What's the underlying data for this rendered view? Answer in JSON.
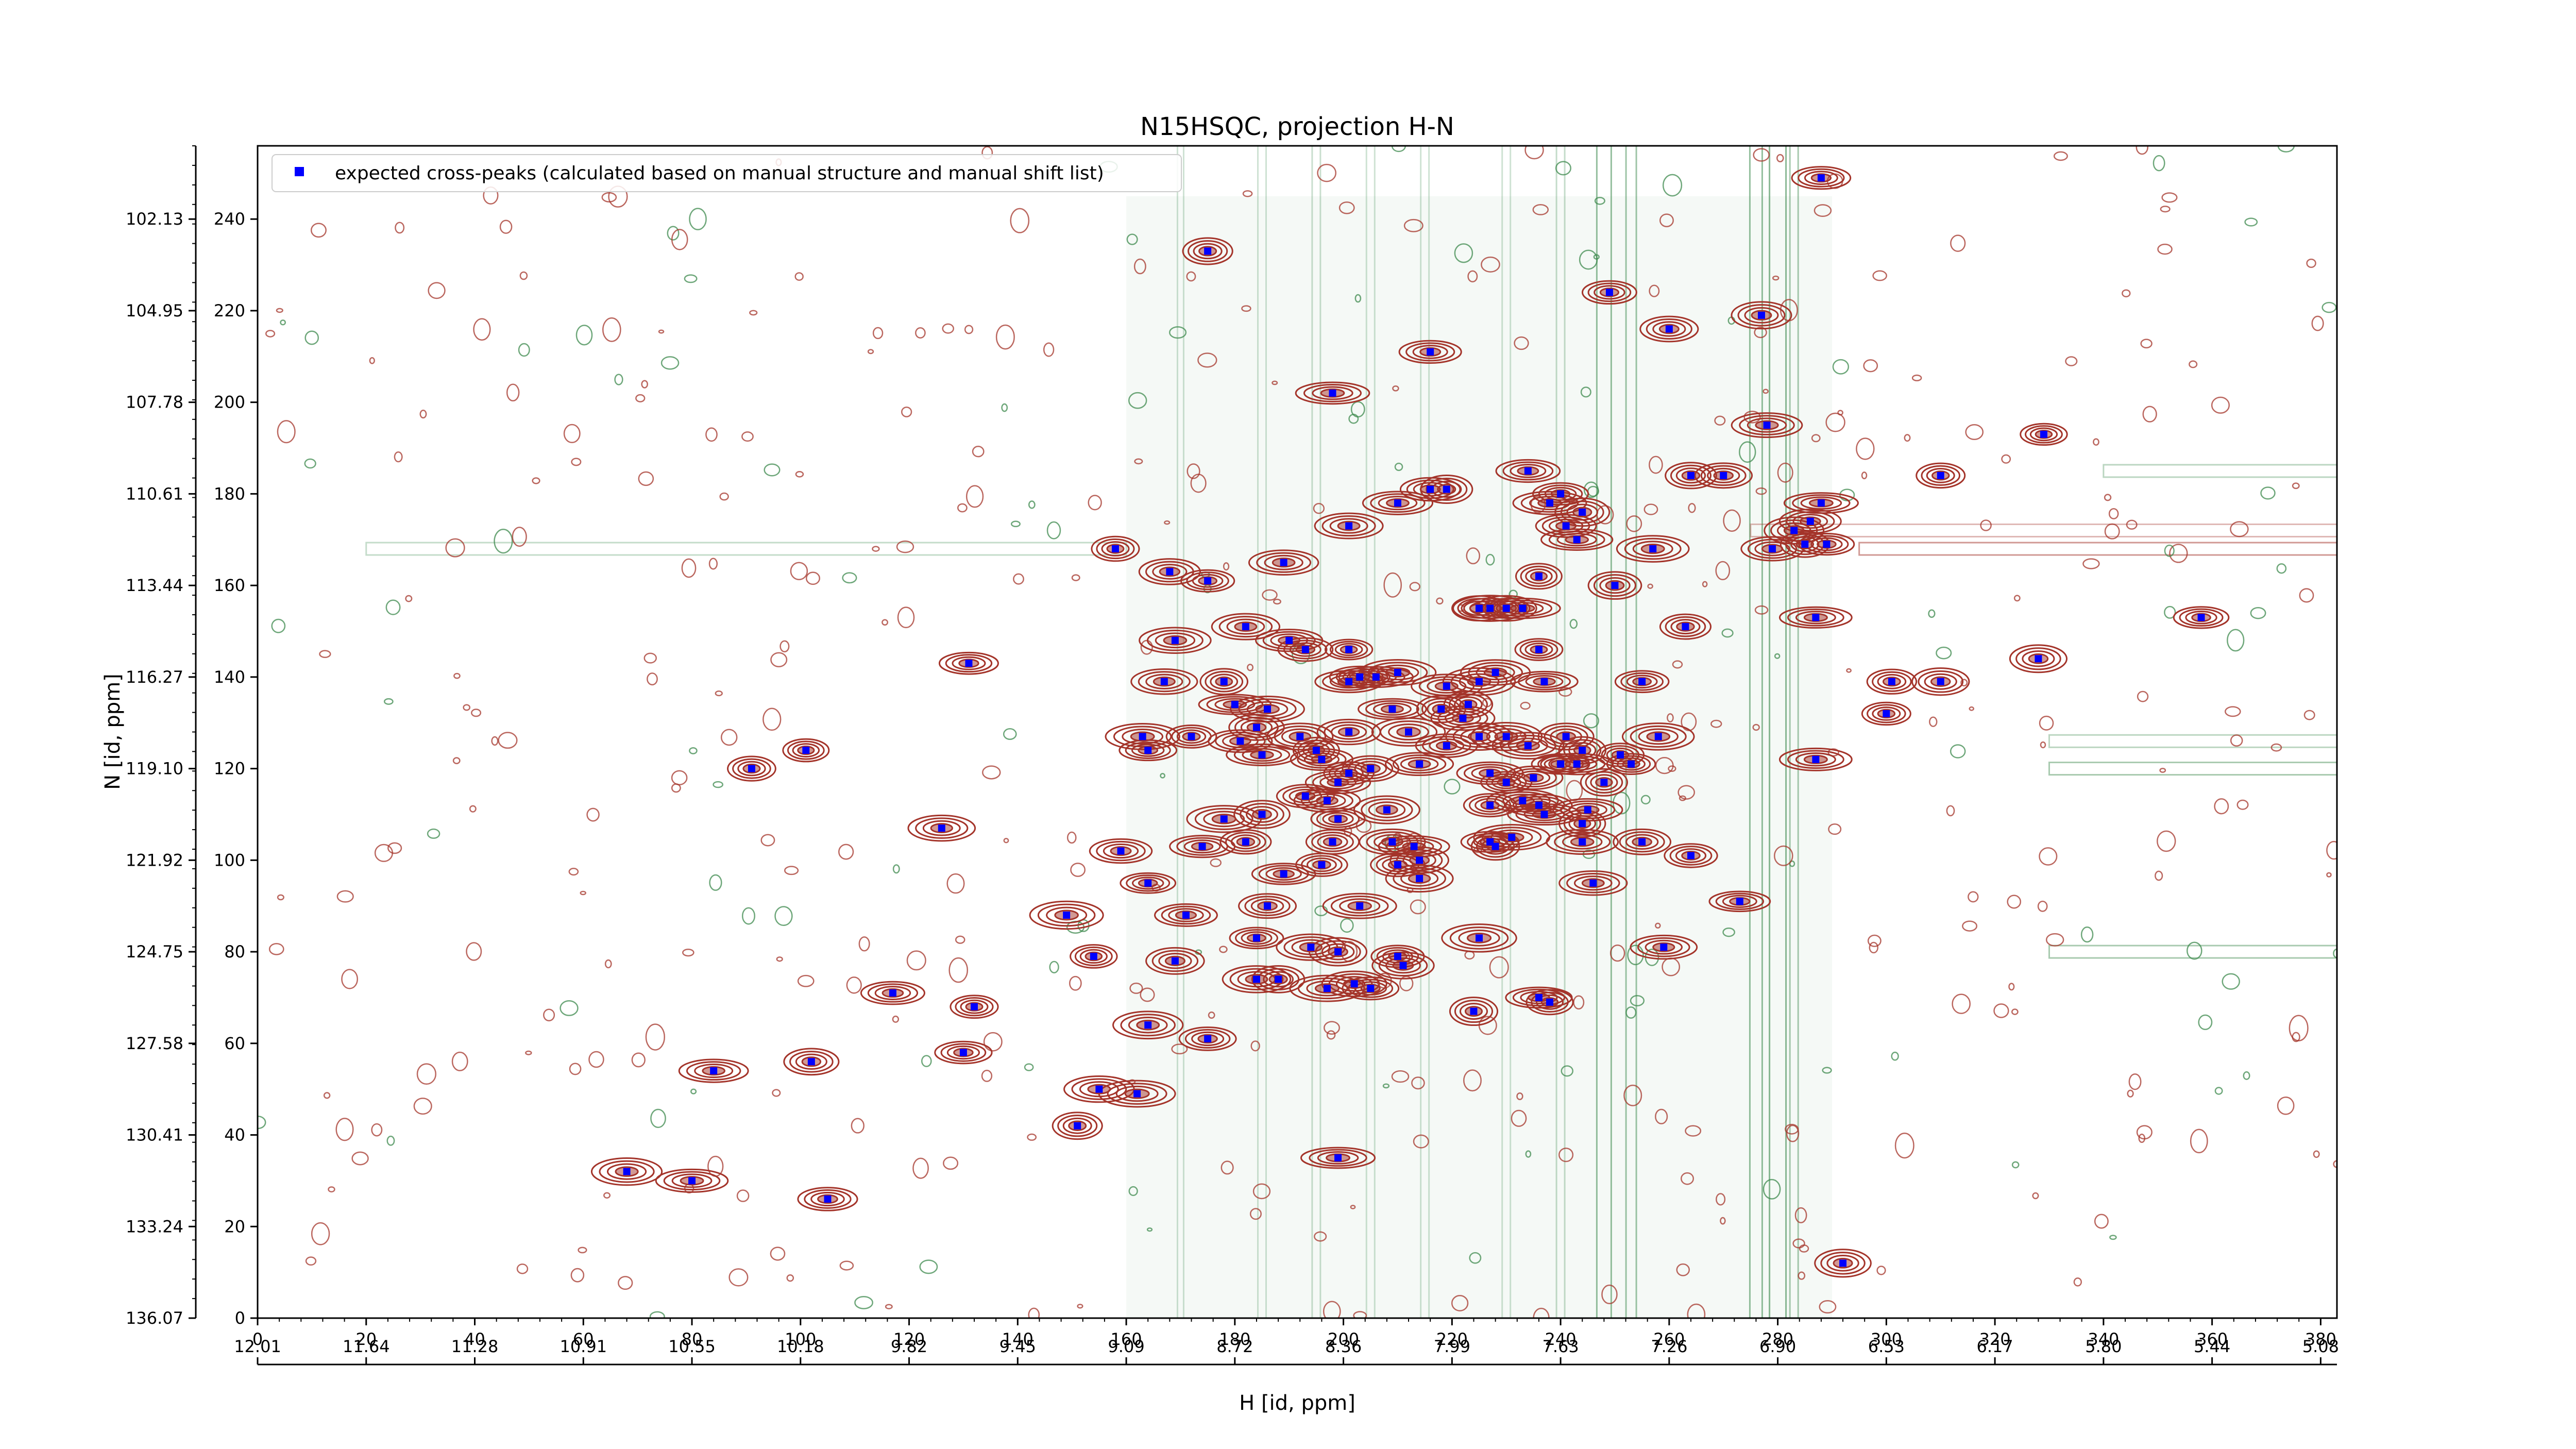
{
  "chart_data": {
    "type": "scatter",
    "title": "N15HSQC, projection H-N",
    "xlabel": "H [id, ppm]",
    "ylabel": "N [id, ppm]",
    "xlim": [
      0,
      383
    ],
    "ylim": [
      0,
      256
    ],
    "x_point_ticks": [
      0,
      20,
      40,
      60,
      80,
      100,
      120,
      140,
      160,
      180,
      200,
      220,
      240,
      260,
      280,
      300,
      320,
      340,
      360,
      380
    ],
    "y_point_ticks": [
      0,
      20,
      40,
      60,
      80,
      100,
      120,
      140,
      160,
      180,
      200,
      220,
      240
    ],
    "x_ppm_tick_labels": [
      "12.01",
      "11.64",
      "11.28",
      "10.91",
      "10.55",
      "10.18",
      "9.82",
      "9.45",
      "9.09",
      "8.72",
      "8.36",
      "7.99",
      "7.63",
      "7.26",
      "6.90",
      "6.53",
      "6.17",
      "5.80",
      "5.44",
      "5.08"
    ],
    "y_ppm_tick_labels": [
      "136.07",
      "133.24",
      "130.41",
      "127.58",
      "124.75",
      "121.92",
      "119.10",
      "116.27",
      "113.44",
      "110.61",
      "107.78",
      "104.95",
      "102.13"
    ],
    "legend": {
      "position": "top-left",
      "entries": [
        {
          "label": "expected cross-peaks (calculated based on manual structure and manual shift list)",
          "color": "#0000ff",
          "marker": "square"
        }
      ]
    },
    "series": [
      {
        "name": "expected cross-peaks (calculated based on manual structure and manual shift list)",
        "color": "#0000ff",
        "points": [
          [
            175,
            233
          ],
          [
            249,
            224
          ],
          [
            260,
            216
          ],
          [
            277,
            219
          ],
          [
            216,
            211
          ],
          [
            288,
            249
          ],
          [
            198,
            202
          ],
          [
            329,
            193
          ],
          [
            278,
            195
          ],
          [
            264,
            184
          ],
          [
            270,
            184
          ],
          [
            310,
            184
          ],
          [
            216,
            181
          ],
          [
            219,
            181
          ],
          [
            234,
            185
          ],
          [
            210,
            178
          ],
          [
            238,
            178
          ],
          [
            240,
            180
          ],
          [
            244,
            176
          ],
          [
            241,
            173
          ],
          [
            201,
            173
          ],
          [
            243,
            170
          ],
          [
            286,
            174
          ],
          [
            288,
            178
          ],
          [
            283,
            172
          ],
          [
            285,
            169
          ],
          [
            279,
            168
          ],
          [
            289,
            169
          ],
          [
            158,
            168
          ],
          [
            257,
            168
          ],
          [
            168,
            163
          ],
          [
            175,
            161
          ],
          [
            189,
            165
          ],
          [
            236,
            162
          ],
          [
            250,
            160
          ],
          [
            225,
            155
          ],
          [
            227,
            155
          ],
          [
            230,
            155
          ],
          [
            233,
            155
          ],
          [
            287,
            153
          ],
          [
            358,
            153
          ],
          [
            182,
            151
          ],
          [
            169,
            148
          ],
          [
            190,
            148
          ],
          [
            263,
            151
          ],
          [
            193,
            146
          ],
          [
            201,
            146
          ],
          [
            236,
            146
          ],
          [
            131,
            143
          ],
          [
            328,
            144
          ],
          [
            203,
            140
          ],
          [
            201,
            139
          ],
          [
            206,
            140
          ],
          [
            210,
            141
          ],
          [
            219,
            138
          ],
          [
            225,
            139
          ],
          [
            228,
            141
          ],
          [
            237,
            139
          ],
          [
            167,
            139
          ],
          [
            178,
            139
          ],
          [
            180,
            134
          ],
          [
            186,
            133
          ],
          [
            209,
            133
          ],
          [
            218,
            133
          ],
          [
            222,
            131
          ],
          [
            223,
            134
          ],
          [
            255,
            139
          ],
          [
            301,
            139
          ],
          [
            310,
            139
          ],
          [
            300,
            132
          ],
          [
            181,
            126
          ],
          [
            184,
            129
          ],
          [
            163,
            127
          ],
          [
            172,
            127
          ],
          [
            192,
            127
          ],
          [
            201,
            128
          ],
          [
            212,
            128
          ],
          [
            225,
            127
          ],
          [
            230,
            127
          ],
          [
            241,
            127
          ],
          [
            258,
            127
          ],
          [
            244,
            124
          ],
          [
            251,
            123
          ],
          [
            253,
            121
          ],
          [
            196,
            122
          ],
          [
            201,
            119
          ],
          [
            205,
            120
          ],
          [
            214,
            121
          ],
          [
            219,
            125
          ],
          [
            234,
            125
          ],
          [
            240,
            121
          ],
          [
            243,
            121
          ],
          [
            164,
            124
          ],
          [
            185,
            123
          ],
          [
            195,
            124
          ],
          [
            199,
            117
          ],
          [
            227,
            119
          ],
          [
            230,
            117
          ],
          [
            235,
            118
          ],
          [
            248,
            117
          ],
          [
            287,
            122
          ],
          [
            91,
            120
          ],
          [
            101,
            124
          ],
          [
            233,
            113
          ],
          [
            236,
            112
          ],
          [
            245,
            111
          ],
          [
            193,
            114
          ],
          [
            197,
            113
          ],
          [
            199,
            109
          ],
          [
            208,
            111
          ],
          [
            227,
            112
          ],
          [
            237,
            110
          ],
          [
            244,
            108
          ],
          [
            227,
            104
          ],
          [
            198,
            104
          ],
          [
            209,
            104
          ],
          [
            213,
            103
          ],
          [
            214,
            100
          ],
          [
            228,
            103
          ],
          [
            244,
            104
          ],
          [
            178,
            109
          ],
          [
            185,
            110
          ],
          [
            126,
            107
          ],
          [
            159,
            102
          ],
          [
            174,
            103
          ],
          [
            182,
            104
          ],
          [
            196,
            99
          ],
          [
            210,
            99
          ],
          [
            214,
            96
          ],
          [
            231,
            105
          ],
          [
            189,
            97
          ],
          [
            255,
            104
          ],
          [
            264,
            101
          ],
          [
            164,
            95
          ],
          [
            246,
            95
          ],
          [
            273,
            91
          ],
          [
            149,
            88
          ],
          [
            171,
            88
          ],
          [
            186,
            90
          ],
          [
            203,
            90
          ],
          [
            154,
            79
          ],
          [
            169,
            78
          ],
          [
            184,
            83
          ],
          [
            194,
            81
          ],
          [
            199,
            80
          ],
          [
            210,
            79
          ],
          [
            225,
            83
          ],
          [
            259,
            81
          ],
          [
            184,
            74
          ],
          [
            188,
            74
          ],
          [
            197,
            72
          ],
          [
            202,
            73
          ],
          [
            205,
            72
          ],
          [
            211,
            77
          ],
          [
            117,
            71
          ],
          [
            132,
            68
          ],
          [
            224,
            67
          ],
          [
            236,
            70
          ],
          [
            238,
            69
          ],
          [
            164,
            64
          ],
          [
            175,
            61
          ],
          [
            130,
            58
          ],
          [
            84,
            54
          ],
          [
            102,
            56
          ],
          [
            155,
            50
          ],
          [
            162,
            49
          ],
          [
            151,
            42
          ],
          [
            199,
            35
          ],
          [
            68,
            32
          ],
          [
            80,
            30
          ],
          [
            105,
            26
          ],
          [
            292,
            12
          ]
        ]
      }
    ]
  }
}
